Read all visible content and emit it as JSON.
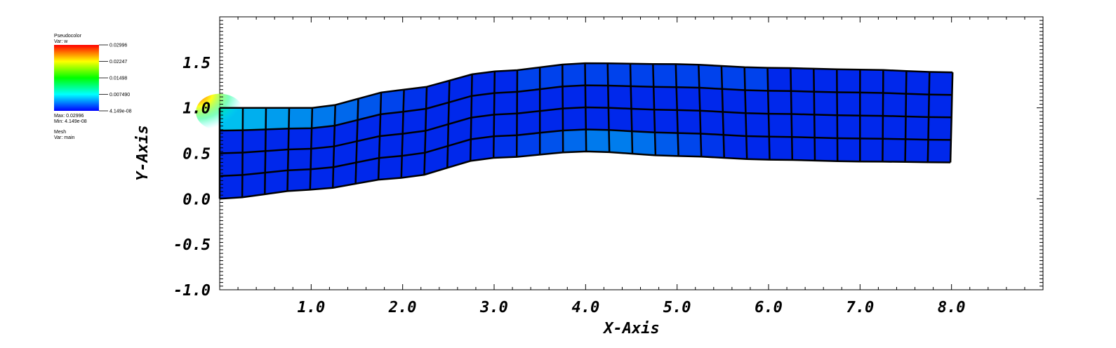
{
  "chart_data": {
    "type": "heatmap",
    "plot_kind": "pseudocolor-on-deformed-mesh",
    "xlabel": "X-Axis",
    "ylabel": "Y-Axis",
    "xlim": [
      0.0,
      9.0
    ],
    "ylim": [
      -1.0,
      2.0
    ],
    "x_ticks": [
      "1.0",
      "2.0",
      "3.0",
      "4.0",
      "5.0",
      "6.0",
      "7.0",
      "8.0"
    ],
    "y_ticks": [
      "-1.0",
      "-0.5",
      "0.0",
      "0.5",
      "1.0",
      "1.5"
    ],
    "x_tick_values": [
      1,
      2,
      3,
      4,
      5,
      6,
      7,
      8
    ],
    "y_tick_values": [
      -1.0,
      -0.5,
      0.0,
      0.5,
      1.0,
      1.5
    ],
    "mesh": {
      "elements_x": 32,
      "elements_y": 4,
      "x_extent": [
        0.0,
        8.0
      ],
      "bottom_boundary": [
        [
          0.0,
          0.0
        ],
        [
          1.0,
          0.1
        ],
        [
          2.0,
          0.23
        ],
        [
          3.0,
          0.45
        ],
        [
          4.0,
          0.52
        ],
        [
          5.0,
          0.47
        ],
        [
          6.0,
          0.43
        ],
        [
          7.0,
          0.41
        ],
        [
          8.0,
          0.4
        ]
      ],
      "top_boundary": [
        [
          0.0,
          1.0
        ],
        [
          1.0,
          1.0
        ],
        [
          2.0,
          1.2
        ],
        [
          3.0,
          1.4
        ],
        [
          4.0,
          1.49
        ],
        [
          5.0,
          1.48
        ],
        [
          6.0,
          1.44
        ],
        [
          7.0,
          1.42
        ],
        [
          8.0,
          1.39
        ]
      ]
    },
    "legend": {
      "placement": "top-left",
      "title": "Pseudocolor",
      "var_label": "Var: w",
      "tick_labels": [
        "0.02996",
        "0.02247",
        "0.01498",
        "0.007490",
        "4.149e-08"
      ],
      "max_label": "Max: 0.02996",
      "min_label": "Min: 4.149e-08",
      "mesh_title": "Mesh",
      "mesh_var": "Var: main",
      "color_stops": [
        "#ff0000",
        "#ffff00",
        "#00ff00",
        "#00ffff",
        "#0000ff"
      ]
    }
  }
}
